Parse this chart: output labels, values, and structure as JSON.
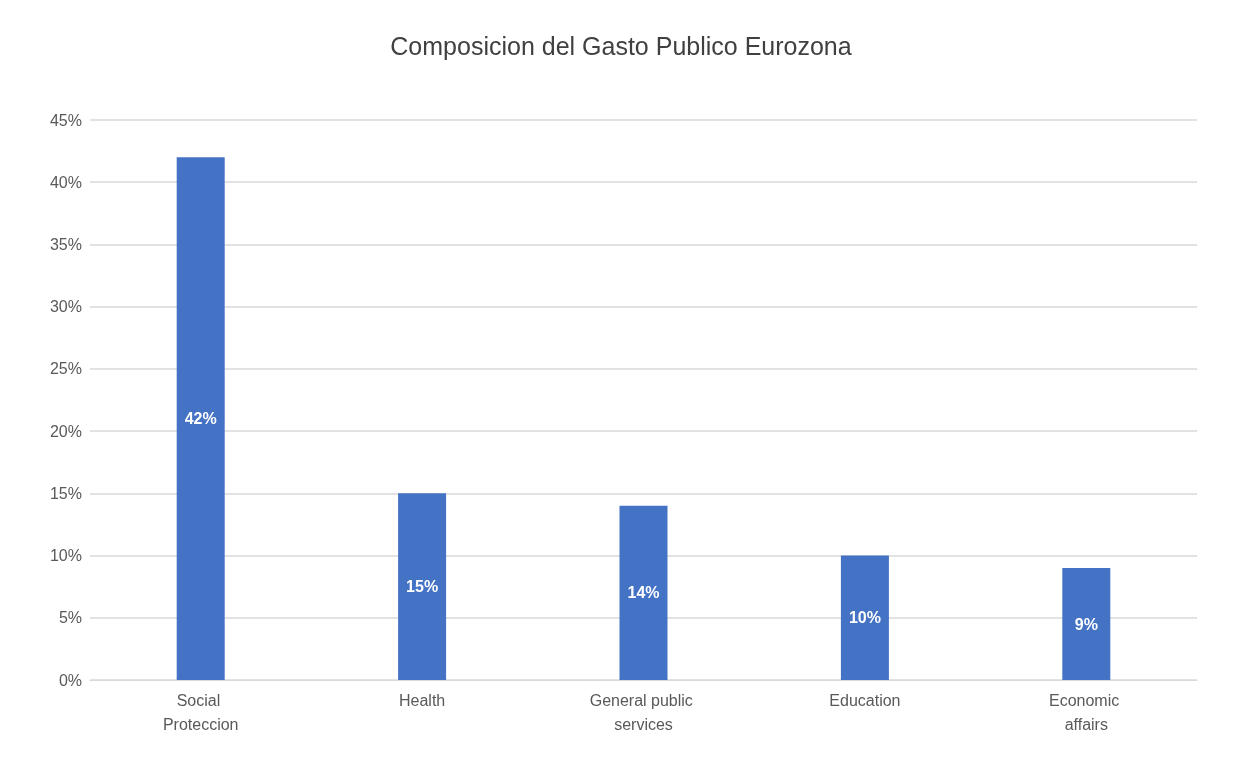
{
  "chart_data": {
    "type": "bar",
    "title": "Composicion del Gasto Publico Eurozona",
    "categories": [
      "Social Proteccion",
      "Health",
      "General public services",
      "Education",
      "Economic affairs"
    ],
    "values": [
      42,
      15,
      14,
      10,
      9
    ],
    "value_labels": [
      "42%",
      "15%",
      "14%",
      "10%",
      "9%"
    ],
    "color": "#4472c4",
    "ylim": [
      0,
      45
    ],
    "yticks": [
      {
        "value": 0,
        "label": "0%"
      },
      {
        "value": 5,
        "label": "5%"
      },
      {
        "value": 10,
        "label": "10%"
      },
      {
        "value": 15,
        "label": "15%"
      },
      {
        "value": 20,
        "label": "20%"
      },
      {
        "value": 25,
        "label": "25%"
      },
      {
        "value": 30,
        "label": "30%"
      },
      {
        "value": 35,
        "label": "35%"
      },
      {
        "value": 40,
        "label": "40%"
      },
      {
        "value": 45,
        "label": "45%"
      }
    ],
    "grid": "y"
  }
}
